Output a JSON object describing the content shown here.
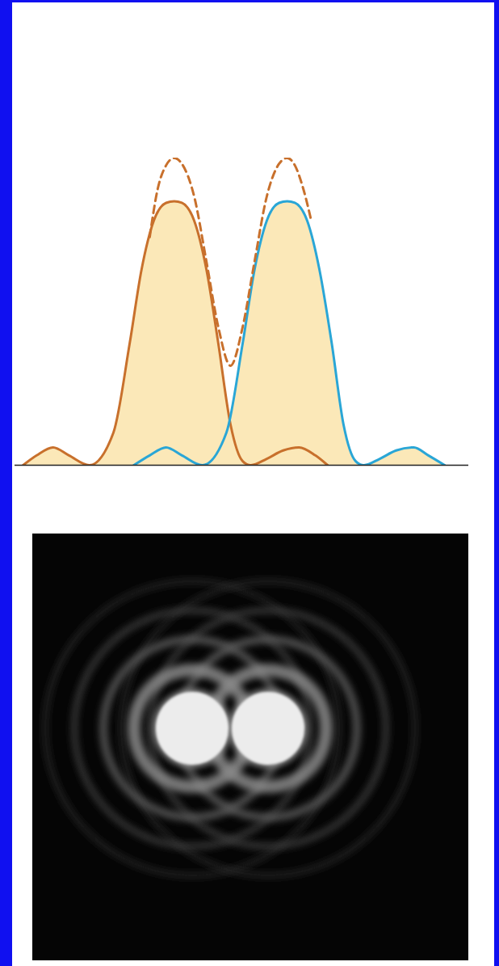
{
  "chart_data": {
    "type": "line",
    "tick_labels": false,
    "grid": false,
    "xlim": [
      0,
      100
    ],
    "ylim": [
      0,
      100
    ],
    "series": [
      {
        "type": "area",
        "color": "#c8702c",
        "line_style": "solid",
        "x": [
          1.8,
          4.8,
          8.4,
          11.9,
          16.4,
          21.7,
          25.3,
          27.9,
          30.6,
          33.3,
          35.1,
          36.8,
          39.5,
          42.2,
          44.8,
          47.5,
          50.2,
          52.0,
          55.5,
          59.1,
          62.6,
          66.2,
          68.9
        ],
        "values": [
          0,
          3.2,
          5.8,
          3.2,
          0,
          10.6,
          39.8,
          63.7,
          79.6,
          85.4,
          85.9,
          85.4,
          79.6,
          63.7,
          39.8,
          13.3,
          1.3,
          0,
          2.1,
          4.8,
          5.8,
          3.2,
          0
        ]
      },
      {
        "type": "area",
        "color": "#2aa6d6",
        "line_style": "solid",
        "x": [
          26.2,
          29.7,
          33.3,
          36.8,
          41.3,
          46.6,
          50.2,
          52.8,
          55.5,
          58.2,
          60.0,
          61.7,
          64.4,
          67.1,
          69.8,
          72.4,
          75.1,
          76.9,
          80.4,
          84.0,
          87.9,
          91.1,
          94.7
        ],
        "values": [
          0,
          3.2,
          5.8,
          3.2,
          0,
          10.6,
          39.8,
          63.7,
          79.6,
          85.4,
          85.9,
          85.4,
          79.6,
          63.7,
          39.8,
          13.3,
          1.3,
          0,
          2.1,
          4.8,
          5.8,
          3.2,
          0
        ]
      },
      {
        "type": "line",
        "color": "#c8702c",
        "line_style": "dashed",
        "x": [
          29.7,
          31.5,
          33.3,
          35.1,
          36.8,
          39.5,
          42.2,
          44.8,
          47.5,
          50.2,
          52.8,
          55.5,
          58.2,
          60.0,
          61.7,
          63.5,
          65.3
        ],
        "values": [
          74.3,
          90.2,
          97.6,
          100,
          98.1,
          87.5,
          66.3,
          45.1,
          32.4,
          45.1,
          66.3,
          87.5,
          98.1,
          100,
          97.6,
          90.2,
          79.6
        ]
      }
    ]
  }
}
